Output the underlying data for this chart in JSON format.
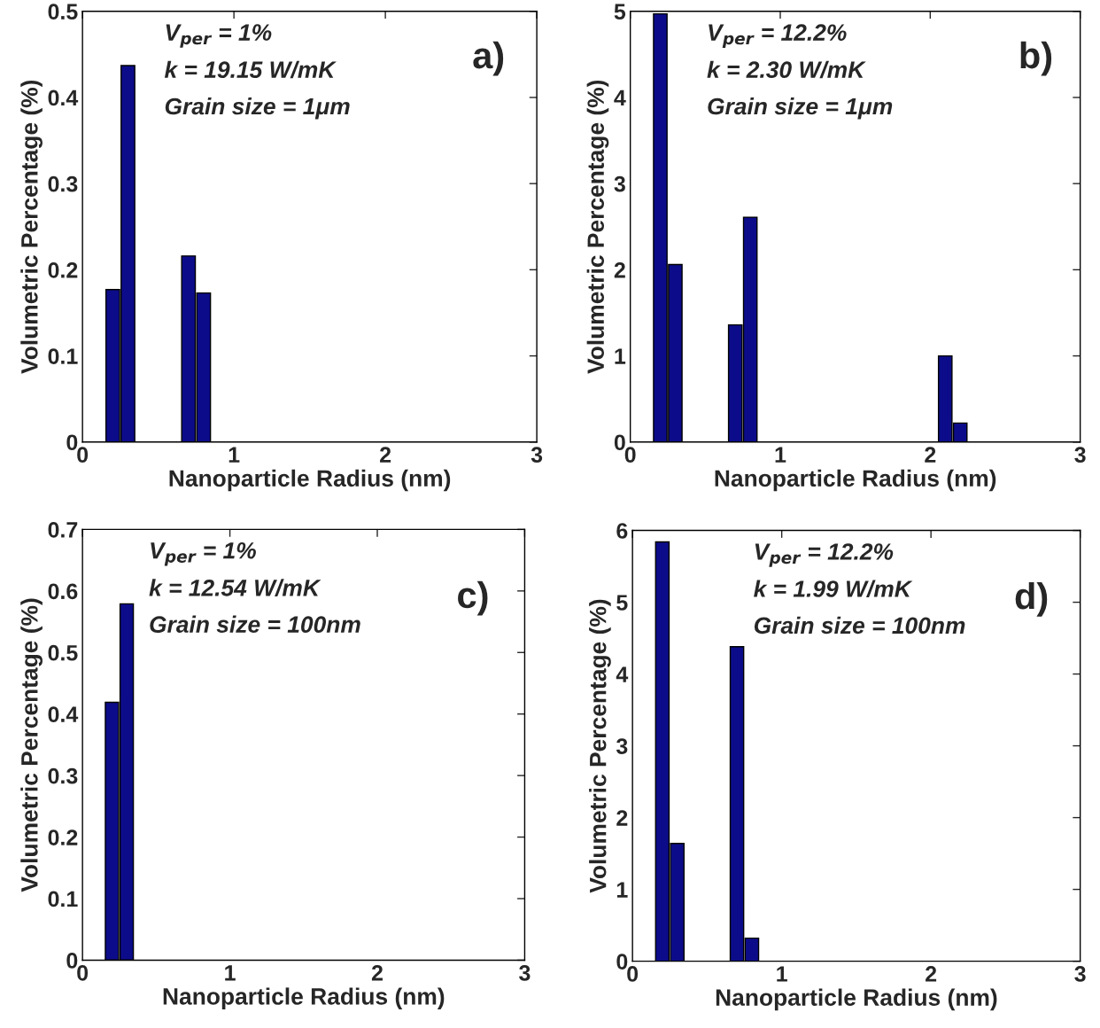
{
  "chart_data": [
    {
      "type": "bar",
      "x": [
        0.2,
        0.3,
        0.7,
        0.8
      ],
      "values": [
        0.177,
        0.437,
        0.216,
        0.173
      ],
      "color": "#0c0c8a",
      "xlabel": "Nanoparticle Radius (nm)",
      "ylabel": "Volumetric Percentage (%)",
      "xlim": [
        0,
        3
      ],
      "xticks": [
        0,
        1,
        2,
        3
      ],
      "ylim": [
        0,
        0.5
      ],
      "yticks": [
        0,
        0.1,
        0.2,
        0.3,
        0.4,
        0.5
      ],
      "grid": false,
      "annotations": [
        "V$_{per}$ = 1%",
        "k = 19.15 W/mK",
        "Grain size = 1μm",
        "a)"
      ]
    },
    {
      "type": "bar",
      "x": [
        0.2,
        0.3,
        0.7,
        0.8,
        2.1,
        2.2
      ],
      "values": [
        4.97,
        2.06,
        1.36,
        2.61,
        1.0,
        0.22
      ],
      "color": "#0c0c8a",
      "xlabel": "Nanoparticle Radius (nm)",
      "ylabel": "Volumetric Percentage (%)",
      "xlim": [
        0,
        3
      ],
      "xticks": [
        0,
        1,
        2,
        3
      ],
      "ylim": [
        0,
        5
      ],
      "yticks": [
        0,
        1,
        2,
        3,
        4,
        5
      ],
      "grid": false,
      "annotations": [
        "V$_{per}$ = 12.2%",
        "k = 2.30 W/mK",
        "Grain size = 1μm",
        "b)"
      ]
    },
    {
      "type": "bar",
      "x": [
        0.2,
        0.3
      ],
      "values": [
        0.419,
        0.579
      ],
      "color": "#0c0c8a",
      "xlabel": "Nanoparticle Radius (nm)",
      "ylabel": "Volumetric Percentage (%)",
      "xlim": [
        0,
        3
      ],
      "xticks": [
        0,
        1,
        2,
        3
      ],
      "ylim": [
        0,
        0.7
      ],
      "yticks": [
        0,
        0.1,
        0.2,
        0.3,
        0.4,
        0.5,
        0.6,
        0.7
      ],
      "grid": false,
      "annotations": [
        "V$_{per}$ = 1%",
        "k = 12.54 W/mK",
        "Grain size = 100nm",
        "c)"
      ]
    },
    {
      "type": "bar",
      "x": [
        0.2,
        0.3,
        0.7,
        0.8
      ],
      "values": [
        5.84,
        1.64,
        4.38,
        0.32
      ],
      "color": "#0c0c8a",
      "xlabel": "Nanoparticle Radius (nm)",
      "ylabel": "Volumetric Percentage (%)",
      "xlim": [
        0,
        3
      ],
      "xticks": [
        0,
        1,
        2,
        3
      ],
      "ylim": [
        0,
        6
      ],
      "yticks": [
        0,
        1,
        2,
        3,
        4,
        5,
        6
      ],
      "grid": false,
      "annotations": [
        "V$_{per}$ = 12.2%",
        "k = 1.99 W/mK",
        "Grain size = 100nm",
        "d)"
      ]
    }
  ]
}
